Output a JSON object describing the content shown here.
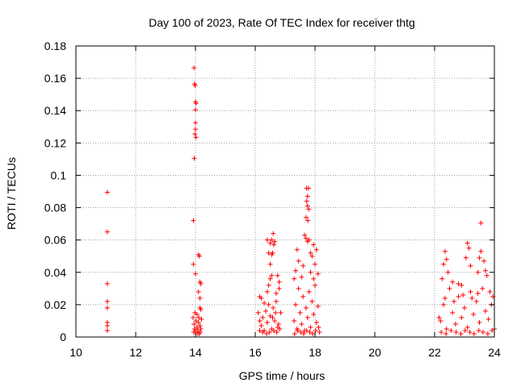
{
  "chart_data": {
    "type": "scatter",
    "title": "Day 100 of 2023, Rate Of TEC Index for receiver thtg",
    "xlabel": "GPS time / hours",
    "ylabel": "ROTI / TECUs",
    "xlim": [
      10,
      24
    ],
    "ylim": [
      0,
      0.18
    ],
    "xticks": [
      10,
      12,
      14,
      16,
      18,
      20,
      22,
      24
    ],
    "yticks": [
      0,
      0.02,
      0.04,
      0.06,
      0.08,
      0.1,
      0.12,
      0.14,
      0.16,
      0.18
    ],
    "xtick_labels": [
      "10",
      "12",
      "14",
      "16",
      "18",
      "20",
      "22",
      "24"
    ],
    "ytick_labels": [
      "0",
      "0.02",
      "0.04",
      "0.06",
      "0.08",
      "0.1",
      "0.12",
      "0.14",
      "0.16",
      "0.18"
    ],
    "grid": true,
    "marker": "+",
    "color": "#ff0000",
    "series": [
      {
        "points": [
          [
            11.05,
            0.0895
          ],
          [
            11.05,
            0.065
          ],
          [
            11.05,
            0.033
          ],
          [
            11.05,
            0.022
          ],
          [
            11.05,
            0.018
          ],
          [
            11.05,
            0.009
          ],
          [
            11.05,
            0.007
          ],
          [
            11.05,
            0.004
          ],
          [
            13.95,
            0.1665
          ],
          [
            13.97,
            0.1565
          ],
          [
            13.99,
            0.1555
          ],
          [
            14.0,
            0.1455
          ],
          [
            14.02,
            0.1445
          ],
          [
            14.0,
            0.1405
          ],
          [
            14.0,
            0.1325
          ],
          [
            14.0,
            0.1285
          ],
          [
            13.98,
            0.1255
          ],
          [
            14.02,
            0.1235
          ],
          [
            13.96,
            0.1105
          ],
          [
            13.93,
            0.072
          ],
          [
            13.93,
            0.045
          ],
          [
            14.1,
            0.051
          ],
          [
            14.13,
            0.05
          ],
          [
            14.0,
            0.039
          ],
          [
            14.15,
            0.034
          ],
          [
            14.18,
            0.033
          ],
          [
            14.1,
            0.028
          ],
          [
            14.15,
            0.024
          ],
          [
            14.15,
            0.018
          ],
          [
            14.18,
            0.017
          ],
          [
            13.98,
            0.015
          ],
          [
            14.05,
            0.014
          ],
          [
            13.92,
            0.012
          ],
          [
            13.95,
            0.008
          ],
          [
            13.97,
            0.005
          ],
          [
            14.0,
            0.003
          ],
          [
            14.02,
            0.01
          ],
          [
            14.05,
            0.006
          ],
          [
            14.08,
            0.004
          ],
          [
            14.1,
            0.009
          ],
          [
            14.12,
            0.002
          ],
          [
            14.15,
            0.007
          ],
          [
            14.18,
            0.005
          ],
          [
            14.2,
            0.011
          ],
          [
            13.94,
            0.003
          ],
          [
            14.06,
            0.002
          ],
          [
            14.11,
            0.012
          ],
          [
            14.16,
            0.003
          ],
          [
            16.15,
            0.025
          ],
          [
            16.2,
            0.024
          ],
          [
            16.1,
            0.015
          ],
          [
            16.15,
            0.01
          ],
          [
            16.2,
            0.007
          ],
          [
            16.25,
            0.012
          ],
          [
            16.3,
            0.004
          ],
          [
            16.35,
            0.016
          ],
          [
            16.4,
            0.009
          ],
          [
            16.45,
            0.02
          ],
          [
            16.5,
            0.013
          ],
          [
            16.55,
            0.005
          ],
          [
            16.6,
            0.018
          ],
          [
            16.65,
            0.01
          ],
          [
            16.7,
            0.022
          ],
          [
            16.75,
            0.006
          ],
          [
            16.8,
            0.03
          ],
          [
            16.85,
            0.015
          ],
          [
            16.3,
            0.021
          ],
          [
            16.4,
            0.028
          ],
          [
            16.45,
            0.032
          ],
          [
            16.5,
            0.036
          ],
          [
            16.55,
            0.038
          ],
          [
            16.75,
            0.038
          ],
          [
            16.8,
            0.034
          ],
          [
            16.7,
            0.027
          ],
          [
            16.45,
            0.052
          ],
          [
            16.5,
            0.058
          ],
          [
            16.55,
            0.051
          ],
          [
            16.55,
            0.06
          ],
          [
            16.6,
            0.064
          ],
          [
            16.62,
            0.057
          ],
          [
            16.58,
            0.052
          ],
          [
            16.65,
            0.059
          ],
          [
            16.4,
            0.06
          ],
          [
            16.5,
            0.045
          ],
          [
            16.25,
            0.003
          ],
          [
            16.38,
            0.002
          ],
          [
            16.48,
            0.003
          ],
          [
            16.62,
            0.004
          ],
          [
            16.72,
            0.003
          ],
          [
            16.82,
            0.005
          ],
          [
            16.15,
            0.004
          ],
          [
            16.58,
            0.012
          ],
          [
            16.68,
            0.015
          ],
          [
            16.78,
            0.008
          ],
          [
            17.3,
            0.01
          ],
          [
            17.35,
            0.02
          ],
          [
            17.4,
            0.005
          ],
          [
            17.45,
            0.03
          ],
          [
            17.5,
            0.015
          ],
          [
            17.55,
            0.008
          ],
          [
            17.6,
            0.025
          ],
          [
            17.65,
            0.004
          ],
          [
            17.7,
            0.018
          ],
          [
            17.75,
            0.012
          ],
          [
            17.8,
            0.028
          ],
          [
            17.85,
            0.006
          ],
          [
            17.9,
            0.022
          ],
          [
            17.95,
            0.014
          ],
          [
            18.0,
            0.032
          ],
          [
            18.05,
            0.009
          ],
          [
            18.1,
            0.019
          ],
          [
            18.15,
            0.003
          ],
          [
            17.3,
            0.036
          ],
          [
            17.35,
            0.041
          ],
          [
            17.4,
            0.054
          ],
          [
            17.45,
            0.047
          ],
          [
            17.55,
            0.037
          ],
          [
            17.6,
            0.044
          ],
          [
            17.65,
            0.063
          ],
          [
            17.7,
            0.061
          ],
          [
            17.75,
            0.059
          ],
          [
            17.8,
            0.06
          ],
          [
            17.85,
            0.052
          ],
          [
            17.9,
            0.05
          ],
          [
            17.95,
            0.057
          ],
          [
            18.05,
            0.054
          ],
          [
            18.0,
            0.045
          ],
          [
            18.1,
            0.039
          ],
          [
            17.85,
            0.04
          ],
          [
            17.95,
            0.036
          ],
          [
            17.72,
            0.092
          ],
          [
            17.78,
            0.092
          ],
          [
            17.75,
            0.087
          ],
          [
            17.72,
            0.084
          ],
          [
            17.75,
            0.081
          ],
          [
            17.79,
            0.079
          ],
          [
            17.7,
            0.074
          ],
          [
            17.76,
            0.072
          ],
          [
            17.32,
            0.002
          ],
          [
            17.42,
            0.004
          ],
          [
            17.52,
            0.003
          ],
          [
            17.62,
            0.002
          ],
          [
            17.72,
            0.004
          ],
          [
            17.82,
            0.003
          ],
          [
            17.92,
            0.002
          ],
          [
            18.02,
            0.004
          ],
          [
            18.12,
            0.006
          ],
          [
            22.2,
            0.01
          ],
          [
            22.3,
            0.02
          ],
          [
            22.4,
            0.005
          ],
          [
            22.5,
            0.03
          ],
          [
            22.6,
            0.015
          ],
          [
            22.7,
            0.008
          ],
          [
            22.8,
            0.025
          ],
          [
            22.9,
            0.012
          ],
          [
            23.0,
            0.018
          ],
          [
            23.1,
            0.006
          ],
          [
            23.2,
            0.028
          ],
          [
            23.3,
            0.014
          ],
          [
            23.4,
            0.022
          ],
          [
            23.5,
            0.009
          ],
          [
            23.6,
            0.03
          ],
          [
            23.7,
            0.016
          ],
          [
            23.8,
            0.011
          ],
          [
            23.9,
            0.02
          ],
          [
            24.0,
            0.005
          ],
          [
            22.25,
            0.036
          ],
          [
            22.3,
            0.045
          ],
          [
            22.35,
            0.053
          ],
          [
            22.4,
            0.048
          ],
          [
            22.45,
            0.04
          ],
          [
            22.6,
            0.034
          ],
          [
            22.8,
            0.033
          ],
          [
            23.05,
            0.049
          ],
          [
            23.1,
            0.058
          ],
          [
            23.15,
            0.055
          ],
          [
            23.2,
            0.044
          ],
          [
            23.5,
            0.049
          ],
          [
            23.55,
            0.053
          ],
          [
            23.65,
            0.047
          ],
          [
            23.7,
            0.041
          ],
          [
            23.75,
            0.038
          ],
          [
            23.45,
            0.04
          ],
          [
            22.9,
            0.032
          ],
          [
            23.55,
            0.0705
          ],
          [
            22.22,
            0.003
          ],
          [
            22.38,
            0.002
          ],
          [
            22.55,
            0.004
          ],
          [
            22.72,
            0.003
          ],
          [
            22.88,
            0.002
          ],
          [
            23.02,
            0.004
          ],
          [
            23.18,
            0.003
          ],
          [
            23.32,
            0.002
          ],
          [
            23.48,
            0.004
          ],
          [
            23.62,
            0.003
          ],
          [
            23.78,
            0.002
          ],
          [
            23.92,
            0.004
          ],
          [
            22.35,
            0.024
          ],
          [
            22.65,
            0.022
          ],
          [
            22.95,
            0.026
          ],
          [
            23.25,
            0.024
          ],
          [
            23.45,
            0.027
          ],
          [
            23.85,
            0.028
          ],
          [
            23.95,
            0.025
          ],
          [
            22.15,
            0.012
          ]
        ]
      }
    ]
  }
}
